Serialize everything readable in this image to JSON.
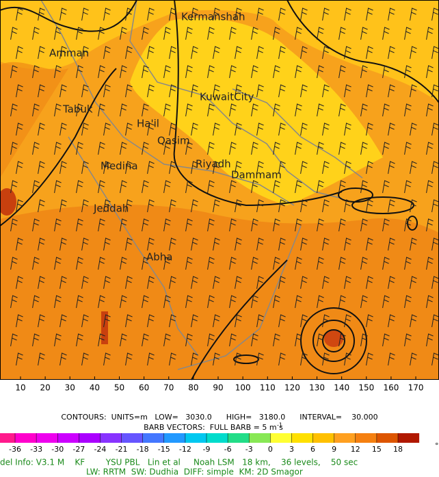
{
  "map": {
    "cities": [
      "Kermanshah",
      "Amman",
      "Tabuk",
      "Ha'il",
      "Qasim",
      "KuwaitCity",
      "Riyadh",
      "Dammam",
      "Medina",
      "Jeddah",
      "Abha"
    ],
    "xticks": [
      10,
      20,
      30,
      40,
      50,
      60,
      70,
      80,
      90,
      100,
      110,
      120,
      130,
      140,
      150,
      160,
      170
    ],
    "xlim": [
      1.7,
      179.4
    ]
  },
  "info": {
    "contours": "CONTOURS:  UNITS=m   LOW=   3030.0      HIGH=   3180.0      INTERVAL=    30.000",
    "barbs": "BARB VECTORS:  FULL BARB = 5 m s",
    "barbs_exponent": "-1"
  },
  "colorbar": {
    "levels": [
      -36,
      -33,
      -30,
      -27,
      -24,
      -21,
      -18,
      -15,
      -12,
      -9,
      -6,
      -3,
      0,
      3,
      6,
      9,
      12,
      15,
      18
    ],
    "colors": [
      "#ff1a8c",
      "#ff00cc",
      "#ee00ee",
      "#cc00ff",
      "#aa00ff",
      "#8833ff",
      "#6655ff",
      "#4477ff",
      "#2299ff",
      "#00c8f0",
      "#00dccc",
      "#22dd88",
      "#88e855",
      "#ffff33",
      "#ffe000",
      "#ffc000",
      "#ffa020",
      "#f58010",
      "#dd5500",
      "#b01800"
    ],
    "unit": "°"
  },
  "footer": {
    "line1": "del Info: V3.1 M    KF        YSU PBL   Lin et al     Noah LSM   18 km,    36 levels,    50 sec",
    "line2": "LW: RRTM  SW: Dudhia  DIFF: simple  KM: 2D Smagor"
  }
}
